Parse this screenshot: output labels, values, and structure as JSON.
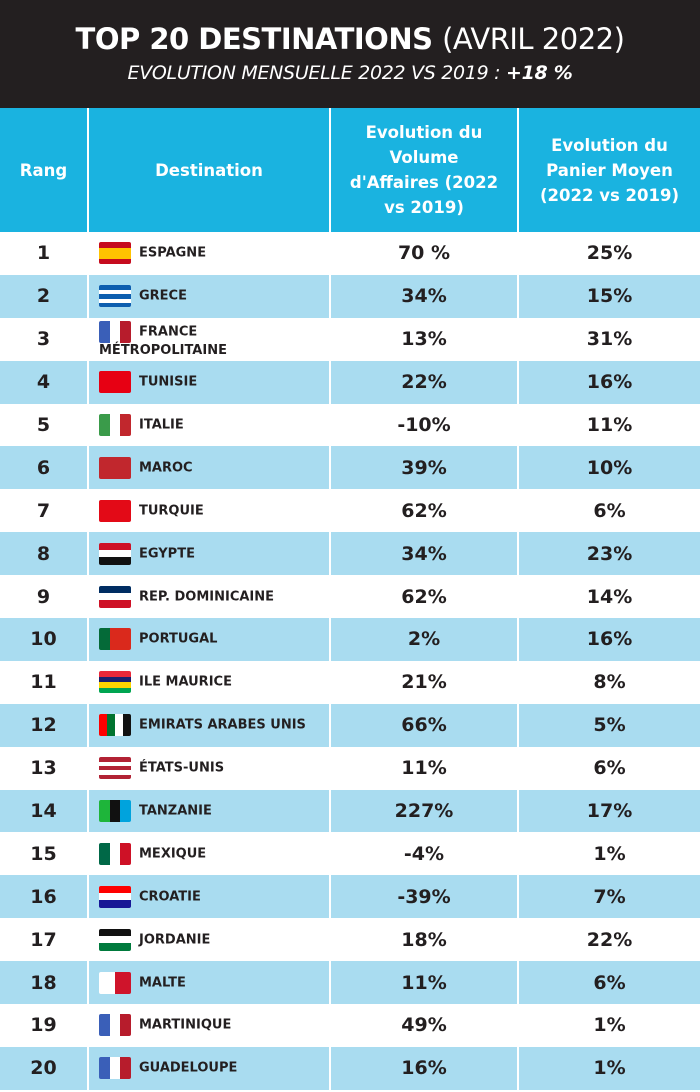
{
  "header": {
    "title_bold": "TOP 20 DESTINATIONS",
    "title_light": "(AVRIL 2022)",
    "subtitle": "EVOLUTION MENSUELLE 2022 VS 2019 :",
    "subtitle_value": "+18 %"
  },
  "colors": {
    "header_bg": "#231f20",
    "column_header_bg": "#1ab3e0",
    "alt_row_bg": "#a9dcf0"
  },
  "chart_data": {
    "type": "table",
    "columns": [
      "Rang",
      "Destination",
      "Evolution du Volume d'Affaires (2022 vs 2019)",
      "Evolution du Panier Moyen (2022 vs 2019)"
    ],
    "rows": [
      {
        "rang": "1",
        "destination": "ESPAGNE",
        "volume": "70 %",
        "panier": "25%",
        "flag": {
          "dir": "h",
          "colors": [
            "#c60b1e",
            "#ffc400",
            "#ffc400",
            "#c60b1e"
          ]
        }
      },
      {
        "rang": "2",
        "destination": "GRECE",
        "volume": "34%",
        "panier": "15%",
        "flag": {
          "dir": "h",
          "colors": [
            "#0d5eaf",
            "#fff",
            "#0d5eaf",
            "#fff",
            "#0d5eaf"
          ]
        }
      },
      {
        "rang": "3",
        "destination": "FRANCE MÉTROPOLITAINE",
        "volume": "13%",
        "panier": "31%",
        "flag": {
          "dir": "v",
          "colors": [
            "#3a5fb8",
            "#fff",
            "#b71c2c"
          ]
        }
      },
      {
        "rang": "4",
        "destination": "TUNISIE",
        "volume": "22%",
        "panier": "16%",
        "flag": {
          "dir": "v",
          "colors": [
            "#e70013"
          ]
        }
      },
      {
        "rang": "5",
        "destination": "ITALIE",
        "volume": "-10%",
        "panier": "11%",
        "flag": {
          "dir": "v",
          "colors": [
            "#3a9b4a",
            "#fff",
            "#c1272d"
          ]
        }
      },
      {
        "rang": "6",
        "destination": "MAROC",
        "volume": "39%",
        "panier": "10%",
        "flag": {
          "dir": "v",
          "colors": [
            "#c1272d"
          ]
        }
      },
      {
        "rang": "7",
        "destination": "TURQUIE",
        "volume": "62%",
        "panier": "6%",
        "flag": {
          "dir": "v",
          "colors": [
            "#e30a17"
          ]
        }
      },
      {
        "rang": "8",
        "destination": "EGYPTE",
        "volume": "34%",
        "panier": "23%",
        "flag": {
          "dir": "h",
          "colors": [
            "#ce1126",
            "#fff",
            "#111"
          ]
        }
      },
      {
        "rang": "9",
        "destination": "REP. DOMINICAINE",
        "volume": "62%",
        "panier": "14%",
        "flag": {
          "dir": "h",
          "colors": [
            "#002d62",
            "#fff",
            "#ce1126"
          ]
        }
      },
      {
        "rang": "10",
        "destination": "PORTUGAL",
        "volume": "2%",
        "panier": "16%",
        "flag": {
          "dir": "v",
          "colors": [
            "#046a38",
            "#da291c",
            "#da291c"
          ]
        }
      },
      {
        "rang": "11",
        "destination": "ILE MAURICE",
        "volume": "21%",
        "panier": "8%",
        "flag": {
          "dir": "h",
          "colors": [
            "#ea2839",
            "#1a206d",
            "#ffd500",
            "#00a551"
          ]
        }
      },
      {
        "rang": "12",
        "destination": "EMIRATS ARABES UNIS",
        "volume": "66%",
        "panier": "5%",
        "flag": {
          "dir": "v",
          "colors": [
            "#ff0000",
            "#00732f",
            "#fff",
            "#111"
          ]
        }
      },
      {
        "rang": "13",
        "destination": "ÉTATS-UNIS",
        "volume": "11%",
        "panier": "6%",
        "flag": {
          "dir": "h",
          "colors": [
            "#b22234",
            "#fff",
            "#b22234",
            "#fff",
            "#b22234"
          ]
        }
      },
      {
        "rang": "14",
        "destination": "TANZANIE",
        "volume": "227%",
        "panier": "17%",
        "flag": {
          "dir": "v",
          "colors": [
            "#1eb53a",
            "#111",
            "#00a3dd"
          ]
        }
      },
      {
        "rang": "15",
        "destination": "MEXIQUE",
        "volume": "-4%",
        "panier": "1%",
        "flag": {
          "dir": "v",
          "colors": [
            "#006847",
            "#fff",
            "#ce1126"
          ]
        }
      },
      {
        "rang": "16",
        "destination": "CROATIE",
        "volume": "-39%",
        "panier": "7%",
        "flag": {
          "dir": "h",
          "colors": [
            "#ff0000",
            "#fff",
            "#171796"
          ]
        }
      },
      {
        "rang": "17",
        "destination": "JORDANIE",
        "volume": "18%",
        "panier": "22%",
        "flag": {
          "dir": "h",
          "colors": [
            "#111",
            "#fff",
            "#007a3d"
          ]
        }
      },
      {
        "rang": "18",
        "destination": "MALTE",
        "volume": "11%",
        "panier": "6%",
        "flag": {
          "dir": "v",
          "colors": [
            "#fff",
            "#cf142b"
          ]
        }
      },
      {
        "rang": "19",
        "destination": "MARTINIQUE",
        "volume": "49%",
        "panier": "1%",
        "flag": {
          "dir": "v",
          "colors": [
            "#3a5fb8",
            "#fff",
            "#b71c2c"
          ]
        }
      },
      {
        "rang": "20",
        "destination": "GUADELOUPE",
        "volume": "16%",
        "panier": "1%",
        "flag": {
          "dir": "v",
          "colors": [
            "#3a5fb8",
            "#fff",
            "#b71c2c"
          ]
        }
      }
    ]
  }
}
